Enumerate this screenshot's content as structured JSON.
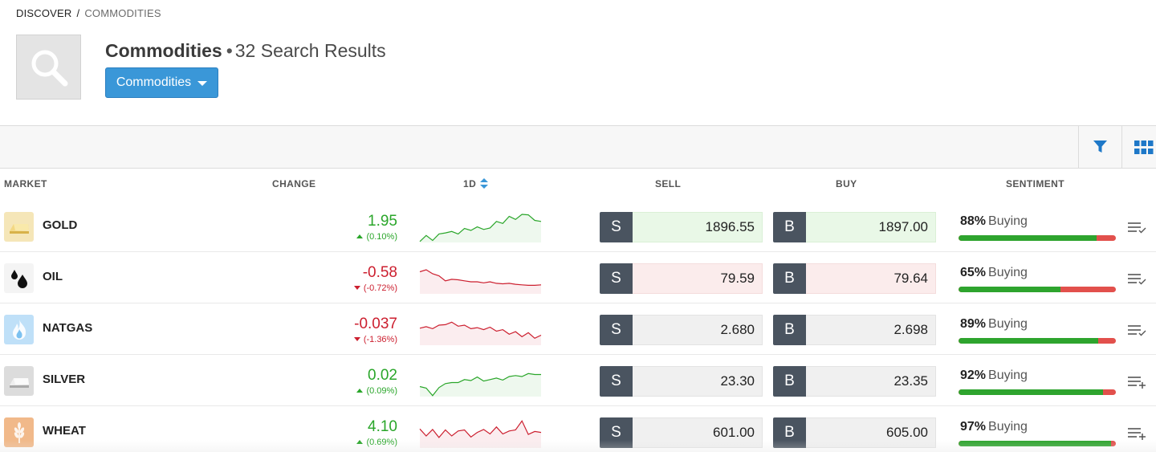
{
  "breadcrumb": {
    "root": "DISCOVER",
    "separator": "/",
    "current": "COMMODITIES"
  },
  "header": {
    "title": "Commodities",
    "dot": "•",
    "count_text": "32 Search Results",
    "icon": "search-icon"
  },
  "filter_dropdown": {
    "label": "Commodities"
  },
  "toolbar": {
    "filter_icon": "filter-icon",
    "grid_icon": "grid-view-icon"
  },
  "columns": {
    "market": "MARKET",
    "change": "CHANGE",
    "period": "1D",
    "sell": "SELL",
    "buy": "BUY",
    "sentiment": "SENTIMENT"
  },
  "colors": {
    "positive": "#2aa62a",
    "negative": "#cc1f2f",
    "accent": "#3a97d8",
    "trade_letter_bg": "#4a5460"
  },
  "sell_letter": "S",
  "buy_letter": "B",
  "markets": [
    {
      "name": "GOLD",
      "icon": "gold-bar-icon",
      "change": "1.95",
      "change_pct": "(0.10%)",
      "direction": "up",
      "sell": "1896.55",
      "buy": "1897.00",
      "price_state": "up",
      "sentiment_pct": "88%",
      "sentiment_label": "Buying",
      "sentiment_value": 88,
      "watch_icon": "watchlist-check-icon",
      "spark": [
        62,
        50,
        60,
        47,
        45,
        42,
        47,
        36,
        40,
        33,
        38,
        35,
        22,
        26,
        12,
        18,
        8,
        9,
        20,
        22
      ]
    },
    {
      "name": "OIL",
      "icon": "oil-drop-icon",
      "change": "-0.58",
      "change_pct": "(-0.72%)",
      "direction": "down",
      "sell": "79.59",
      "buy": "79.64",
      "price_state": "down",
      "sentiment_pct": "65%",
      "sentiment_label": "Buying",
      "sentiment_value": 65,
      "watch_icon": "watchlist-check-icon",
      "spark": [
        20,
        16,
        24,
        28,
        38,
        35,
        36,
        38,
        40,
        40,
        42,
        40,
        43,
        44,
        43,
        45,
        46,
        47,
        47,
        46
      ]
    },
    {
      "name": "NATGAS",
      "icon": "gas-flame-icon",
      "change": "-0.037",
      "change_pct": "(-1.36%)",
      "direction": "down",
      "sell": "2.680",
      "buy": "2.698",
      "price_state": "neutral",
      "sentiment_pct": "89%",
      "sentiment_label": "Buying",
      "sentiment_value": 89,
      "watch_icon": "watchlist-check-icon",
      "spark": [
        30,
        27,
        31,
        24,
        23,
        18,
        26,
        24,
        31,
        29,
        33,
        28,
        36,
        33,
        42,
        37,
        47,
        39,
        50,
        44
      ]
    },
    {
      "name": "SILVER",
      "icon": "silver-bar-icon",
      "change": "0.02",
      "change_pct": "(0.09%)",
      "direction": "up",
      "sell": "23.30",
      "buy": "23.35",
      "price_state": "neutral",
      "sentiment_pct": "92%",
      "sentiment_label": "Buying",
      "sentiment_value": 92,
      "watch_icon": "watchlist-add-icon",
      "spark": [
        44,
        47,
        62,
        46,
        38,
        36,
        36,
        30,
        32,
        25,
        33,
        30,
        27,
        31,
        24,
        22,
        24,
        18,
        20,
        20
      ]
    },
    {
      "name": "WHEAT",
      "icon": "wheat-icon",
      "change": "4.10",
      "change_pct": "(0.69%)",
      "direction": "up",
      "sell": "601.00",
      "buy": "605.00",
      "price_state": "neutral",
      "sentiment_pct": "97%",
      "sentiment_label": "Buying",
      "sentiment_value": 97,
      "watch_icon": "watchlist-add-icon",
      "spark": [
        26,
        40,
        27,
        43,
        28,
        40,
        30,
        28,
        42,
        33,
        27,
        36,
        22,
        36,
        30,
        28,
        10,
        37,
        31,
        33
      ]
    }
  ]
}
